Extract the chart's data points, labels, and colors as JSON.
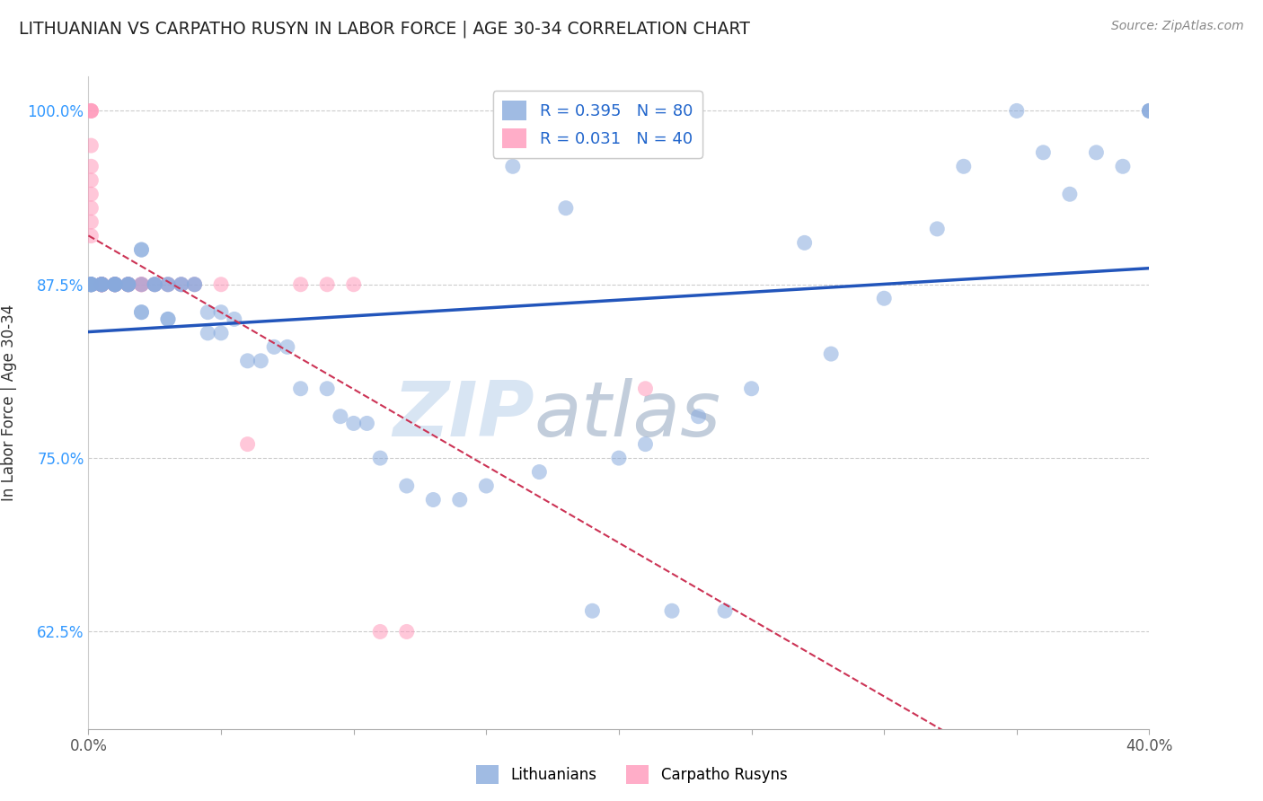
{
  "title": "LITHUANIAN VS CARPATHO RUSYN IN LABOR FORCE | AGE 30-34 CORRELATION CHART",
  "source": "Source: ZipAtlas.com",
  "ylabel": "In Labor Force | Age 30-34",
  "xlim": [
    0.0,
    0.4
  ],
  "ylim": [
    0.555,
    1.025
  ],
  "yticks": [
    0.625,
    0.75,
    0.875,
    1.0
  ],
  "ytick_labels": [
    "62.5%",
    "75.0%",
    "87.5%",
    "100.0%"
  ],
  "xticks": [
    0.0,
    0.05,
    0.1,
    0.15,
    0.2,
    0.25,
    0.3,
    0.35,
    0.4
  ],
  "xtick_labels": [
    "0.0%",
    "",
    "",
    "",
    "",
    "",
    "",
    "",
    "40.0%"
  ],
  "background_color": "#ffffff",
  "grid_color": "#cccccc",
  "blue_color": "#88aadd",
  "pink_color": "#ff99bb",
  "blue_line_color": "#2255bb",
  "pink_line_color": "#cc3355",
  "legend_blue_label": "R = 0.395   N = 80",
  "legend_pink_label": "R = 0.031   N = 40",
  "legend_bottom_blue": "Lithuanians",
  "legend_bottom_pink": "Carpatho Rusyns",
  "watermark_zip": "ZIP",
  "watermark_atlas": "atlas",
  "blue_x": [
    0.001,
    0.001,
    0.001,
    0.001,
    0.001,
    0.001,
    0.001,
    0.005,
    0.005,
    0.005,
    0.005,
    0.005,
    0.01,
    0.01,
    0.01,
    0.01,
    0.01,
    0.01,
    0.015,
    0.015,
    0.015,
    0.015,
    0.02,
    0.02,
    0.02,
    0.02,
    0.02,
    0.025,
    0.025,
    0.025,
    0.03,
    0.03,
    0.03,
    0.03,
    0.035,
    0.035,
    0.04,
    0.04,
    0.045,
    0.045,
    0.05,
    0.05,
    0.055,
    0.06,
    0.065,
    0.07,
    0.075,
    0.08,
    0.09,
    0.095,
    0.1,
    0.105,
    0.11,
    0.12,
    0.13,
    0.14,
    0.15,
    0.16,
    0.17,
    0.18,
    0.19,
    0.2,
    0.21,
    0.22,
    0.23,
    0.24,
    0.25,
    0.27,
    0.28,
    0.3,
    0.32,
    0.33,
    0.35,
    0.36,
    0.37,
    0.38,
    0.39,
    0.4,
    0.4,
    0.4
  ],
  "blue_y": [
    0.875,
    0.875,
    0.875,
    0.875,
    0.875,
    0.875,
    0.875,
    0.875,
    0.875,
    0.875,
    0.875,
    0.875,
    0.875,
    0.875,
    0.875,
    0.875,
    0.875,
    0.875,
    0.875,
    0.875,
    0.875,
    0.875,
    0.9,
    0.9,
    0.875,
    0.855,
    0.855,
    0.875,
    0.875,
    0.875,
    0.875,
    0.875,
    0.85,
    0.85,
    0.875,
    0.875,
    0.875,
    0.875,
    0.855,
    0.84,
    0.855,
    0.84,
    0.85,
    0.82,
    0.82,
    0.83,
    0.83,
    0.8,
    0.8,
    0.78,
    0.775,
    0.775,
    0.75,
    0.73,
    0.72,
    0.72,
    0.73,
    0.96,
    0.74,
    0.93,
    0.64,
    0.75,
    0.76,
    0.64,
    0.78,
    0.64,
    0.8,
    0.905,
    0.825,
    0.865,
    0.915,
    0.96,
    1.0,
    0.97,
    0.94,
    0.97,
    0.96,
    1.0,
    1.0,
    1.0
  ],
  "pink_x": [
    0.001,
    0.001,
    0.001,
    0.001,
    0.001,
    0.001,
    0.001,
    0.001,
    0.001,
    0.001,
    0.001,
    0.005,
    0.005,
    0.005,
    0.005,
    0.005,
    0.005,
    0.005,
    0.01,
    0.01,
    0.01,
    0.01,
    0.015,
    0.015,
    0.015,
    0.02,
    0.02,
    0.02,
    0.025,
    0.03,
    0.035,
    0.04,
    0.05,
    0.06,
    0.08,
    0.09,
    0.1,
    0.11,
    0.12,
    0.21
  ],
  "pink_y": [
    1.0,
    1.0,
    1.0,
    0.975,
    0.96,
    0.95,
    0.94,
    0.93,
    0.92,
    0.91,
    0.875,
    0.875,
    0.875,
    0.875,
    0.875,
    0.875,
    0.875,
    0.875,
    0.875,
    0.875,
    0.875,
    0.875,
    0.875,
    0.875,
    0.875,
    0.875,
    0.875,
    0.875,
    0.875,
    0.875,
    0.875,
    0.875,
    0.875,
    0.76,
    0.875,
    0.875,
    0.875,
    0.625,
    0.625,
    0.8
  ]
}
